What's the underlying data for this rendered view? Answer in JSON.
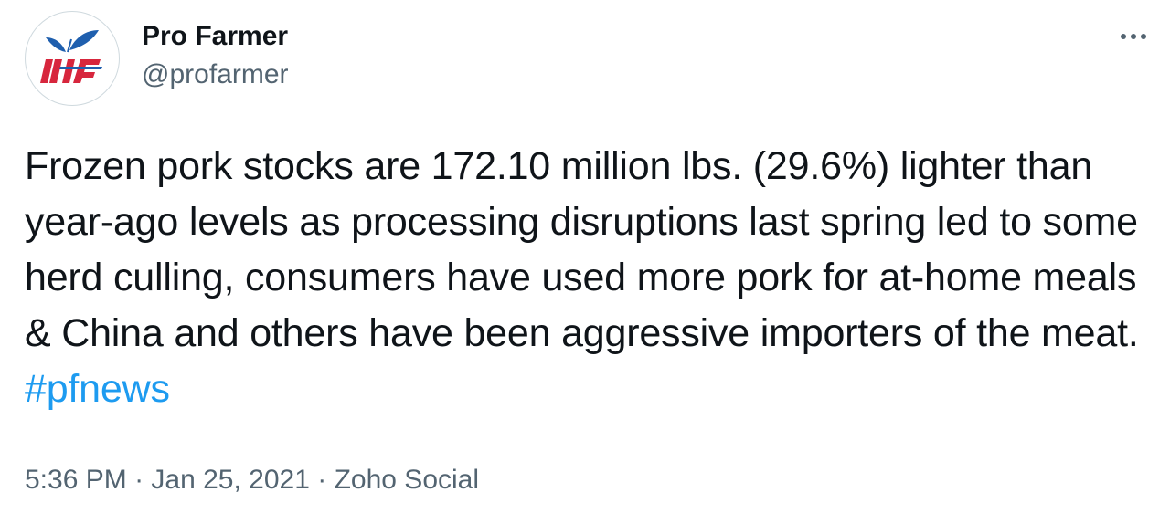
{
  "author": {
    "display_name": "Pro Farmer",
    "handle": "@profarmer",
    "avatar_icon": "pro-farmer-logo-icon"
  },
  "menu": {
    "icon": "more-horizontal-icon"
  },
  "tweet": {
    "text_before_hashtag": "Frozen pork stocks are 172.10 million lbs. (29.6%) lighter than year-ago levels as processing disruptions last spring led to some herd culling, consumers have used more pork for at-home meals & China and others have been aggressive importers of the meat.",
    "hashtag": "#pfnews"
  },
  "meta": {
    "time": "5:36 PM",
    "separator1": "·",
    "date": "Jan 25, 2021",
    "separator2": "·",
    "source": "Zoho Social"
  },
  "colors": {
    "text_primary": "#0f1419",
    "text_secondary": "#536471",
    "link": "#1d9bf0",
    "logo_red": "#d7263d",
    "logo_blue": "#1f5fae"
  }
}
